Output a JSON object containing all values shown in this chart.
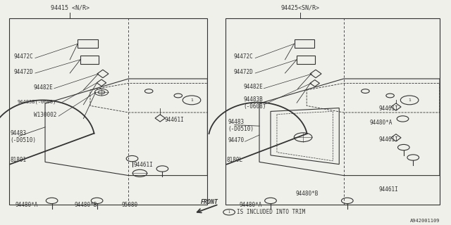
{
  "bg_color": "#f0f0eb",
  "line_color": "#333333",
  "text_color": "#333333",
  "title_bottom": "A942001109",
  "left_panel_title": "94415 <N/R>",
  "right_panel_title": "94425<SN/R>",
  "front_label": "FRONT",
  "note": "(1)IS INCLUDED INTO TRIM"
}
